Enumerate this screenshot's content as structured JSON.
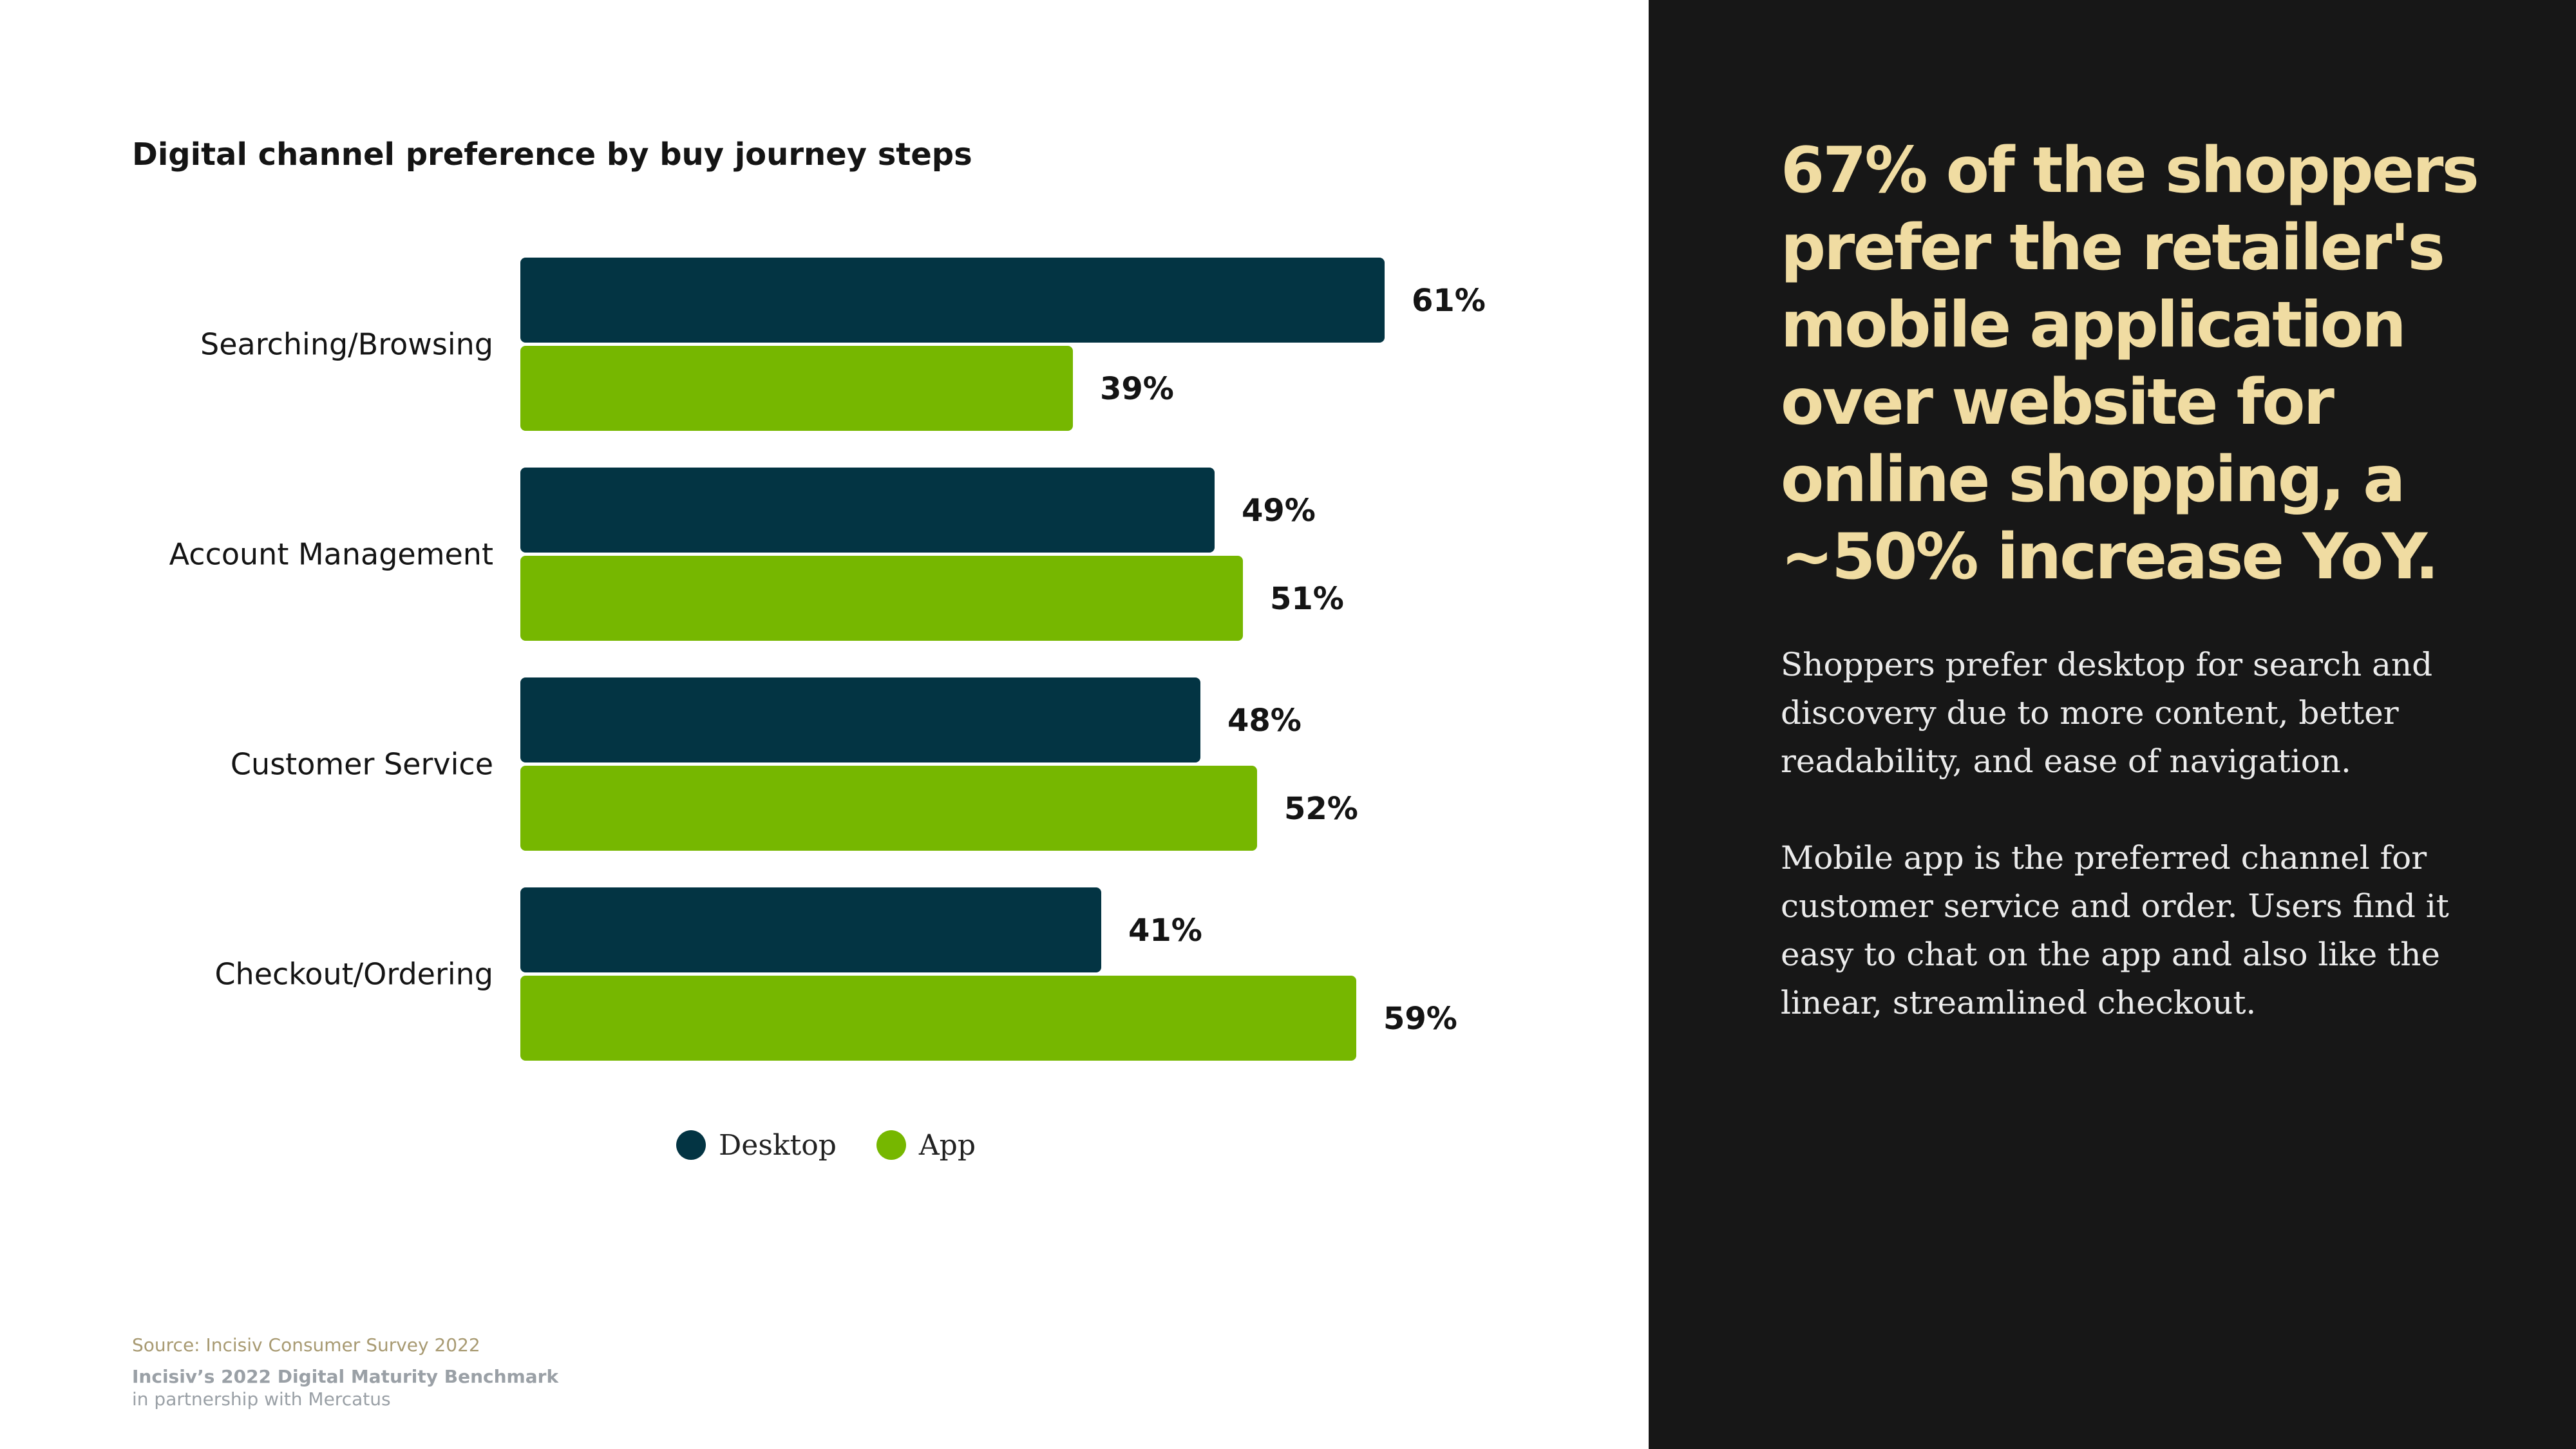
{
  "chart_data": {
    "type": "bar",
    "orientation": "horizontal",
    "title": "Digital channel preference by buy journey steps",
    "categories": [
      "Searching/Browsing",
      "Account Management",
      "Customer Service",
      "Checkout/Ordering"
    ],
    "series": [
      {
        "name": "Desktop",
        "values": [
          61,
          49,
          48,
          41
        ],
        "labels": [
          "61%",
          "49%",
          "48%",
          "41%"
        ],
        "color": "#033443"
      },
      {
        "name": "App",
        "values": [
          39,
          51,
          52,
          59
        ],
        "labels": [
          "39%",
          "51%",
          "52%",
          "59%"
        ],
        "color": "#76b700"
      }
    ],
    "unit": "%",
    "xlim": [
      0,
      100
    ],
    "grid": false,
    "legend_position": "bottom"
  },
  "footer": {
    "source": "Source: Incisiv Consumer Survey 2022",
    "benchmark": "Incisiv’s 2022 Digital Maturity Benchmark",
    "partner": "in partnership with Mercatus"
  },
  "sidebar": {
    "headline": "67% of the shoppers prefer the retailer's mobile application over website for online shopping, a ~50% increase YoY.",
    "paragraphs": [
      "Shoppers prefer desktop for search and discovery due to more content, better readability, and ease of navigation.",
      "Mobile app is the preferred channel for customer service and order. Users find it easy to chat on the app and also like the linear, streamlined checkout."
    ]
  },
  "colors": {
    "dark_panel": "#171717",
    "headline": "#f0dca2",
    "desktop": "#033443",
    "app": "#76b700"
  }
}
